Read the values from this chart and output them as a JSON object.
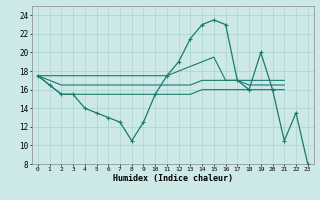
{
  "xlabel": "Humidex (Indice chaleur)",
  "x_hours": [
    0,
    1,
    2,
    3,
    4,
    5,
    6,
    7,
    8,
    9,
    10,
    11,
    12,
    13,
    14,
    15,
    16,
    17,
    18,
    19,
    20,
    21,
    22,
    23
  ],
  "curve_humidex": [
    17.5,
    16.5,
    null,
    null,
    null,
    null,
    null,
    null,
    null,
    null,
    null,
    null,
    null,
    null,
    null,
    null,
    null,
    null,
    null,
    null,
    null,
    null,
    null,
    null
  ],
  "curve_main": [
    17.5,
    16.5,
    15.5,
    15.5,
    14.0,
    13.5,
    13.0,
    12.5,
    10.5,
    12.5,
    15.5,
    17.5,
    19.0,
    21.5,
    23.0,
    23.5,
    23.0,
    17.0,
    16.0,
    20.0,
    16.0,
    10.5,
    13.5,
    8.0
  ],
  "curve_max": [
    17.5,
    17.5,
    17.5,
    17.5,
    17.5,
    17.5,
    17.5,
    17.5,
    17.5,
    17.5,
    17.5,
    17.5,
    18.0,
    18.5,
    19.0,
    19.5,
    17.0,
    17.0,
    17.0,
    17.0,
    17.0,
    17.0,
    null,
    null
  ],
  "curve_min": [
    17.5,
    16.5,
    15.5,
    15.5,
    15.5,
    15.5,
    15.5,
    15.5,
    15.5,
    15.5,
    15.5,
    15.5,
    15.5,
    15.5,
    16.0,
    16.0,
    16.0,
    16.0,
    16.0,
    16.0,
    16.0,
    16.0,
    null,
    null
  ],
  "curve_avg": [
    17.5,
    17.0,
    16.5,
    16.5,
    16.5,
    16.5,
    16.5,
    16.5,
    16.5,
    16.5,
    16.5,
    16.5,
    16.5,
    16.5,
    17.0,
    17.0,
    17.0,
    17.0,
    16.5,
    16.5,
    16.5,
    16.5,
    null,
    null
  ],
  "color": "#1a7a6e",
  "bg_color": "#cce9e7",
  "grid_color": "#aad4d2",
  "ylim": [
    8,
    25
  ],
  "yticks": [
    8,
    10,
    12,
    14,
    16,
    18,
    20,
    22,
    24
  ],
  "xticks": [
    0,
    1,
    2,
    3,
    4,
    5,
    6,
    7,
    8,
    9,
    10,
    11,
    12,
    13,
    14,
    15,
    16,
    17,
    18,
    19,
    20,
    21,
    22,
    23
  ]
}
